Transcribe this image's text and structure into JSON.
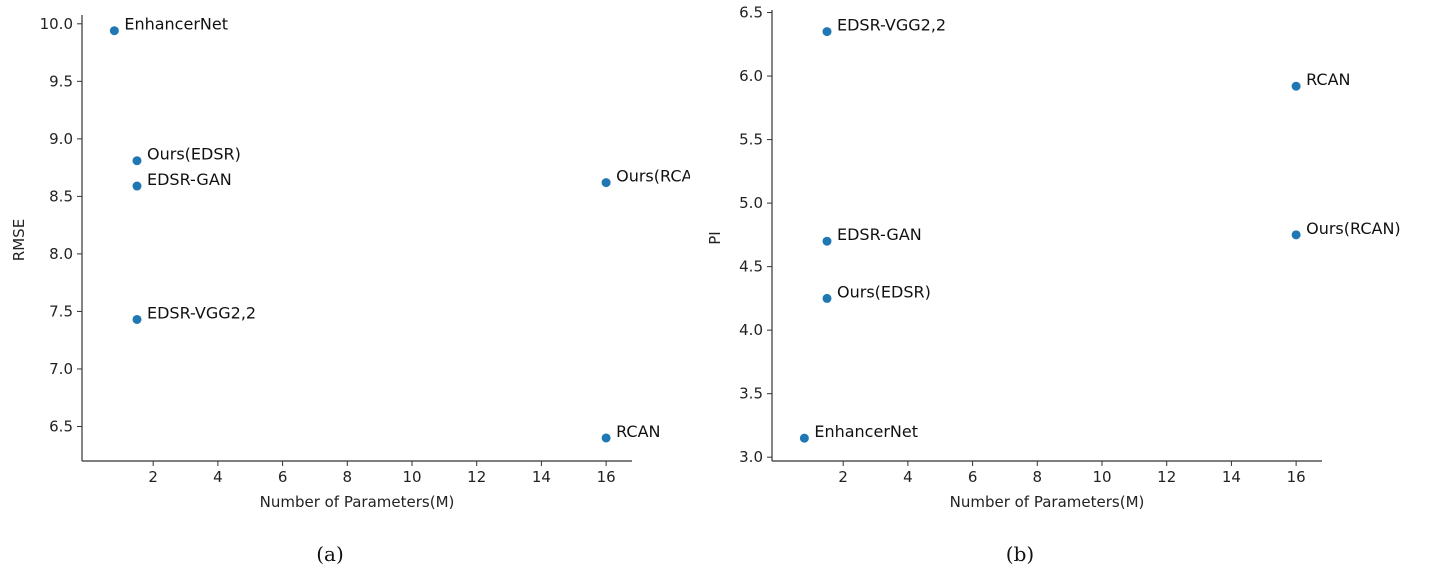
{
  "chart_data": [
    {
      "type": "scatter",
      "panel": "a",
      "caption": "(a)",
      "xlabel": "Number of Parameters(M)",
      "ylabel": "RMSE",
      "xlim": [
        -0.2,
        16.8
      ],
      "ylim": [
        6.2,
        10.12
      ],
      "xticks": [
        2,
        4,
        6,
        8,
        10,
        12,
        14,
        16
      ],
      "yticks": [
        6.5,
        7.0,
        7.5,
        8.0,
        8.5,
        9.0,
        9.5,
        10.0
      ],
      "grid": false,
      "color": "#1f77b4",
      "points": [
        {
          "label": "EnhancerNet",
          "x": 0.8,
          "y": 9.94
        },
        {
          "label": "Ours(EDSR)",
          "x": 1.5,
          "y": 8.81
        },
        {
          "label": "EDSR-GAN",
          "x": 1.5,
          "y": 8.59
        },
        {
          "label": "EDSR-VGG2,2",
          "x": 1.5,
          "y": 7.43
        },
        {
          "label": "Ours(RCAN)",
          "x": 16.0,
          "y": 8.62
        },
        {
          "label": "RCAN",
          "x": 16.0,
          "y": 6.4
        }
      ]
    },
    {
      "type": "scatter",
      "panel": "b",
      "caption": "(b)",
      "xlabel": "Number of Parameters(M)",
      "ylabel": "PI",
      "xlim": [
        -0.2,
        16.8
      ],
      "ylim": [
        2.97,
        6.52
      ],
      "xticks": [
        2,
        4,
        6,
        8,
        10,
        12,
        14,
        16
      ],
      "yticks": [
        3.0,
        3.5,
        4.0,
        4.5,
        5.0,
        5.5,
        6.0,
        6.5
      ],
      "grid": false,
      "color": "#1f77b4",
      "points": [
        {
          "label": "EDSR-VGG2,2",
          "x": 1.5,
          "y": 6.35
        },
        {
          "label": "RCAN",
          "x": 16.0,
          "y": 5.92
        },
        {
          "label": "EDSR-GAN",
          "x": 1.5,
          "y": 4.7
        },
        {
          "label": "Ours(RCAN)",
          "x": 16.0,
          "y": 4.75
        },
        {
          "label": "Ours(EDSR)",
          "x": 1.5,
          "y": 4.25
        },
        {
          "label": "EnhancerNet",
          "x": 0.8,
          "y": 3.15
        }
      ]
    }
  ]
}
